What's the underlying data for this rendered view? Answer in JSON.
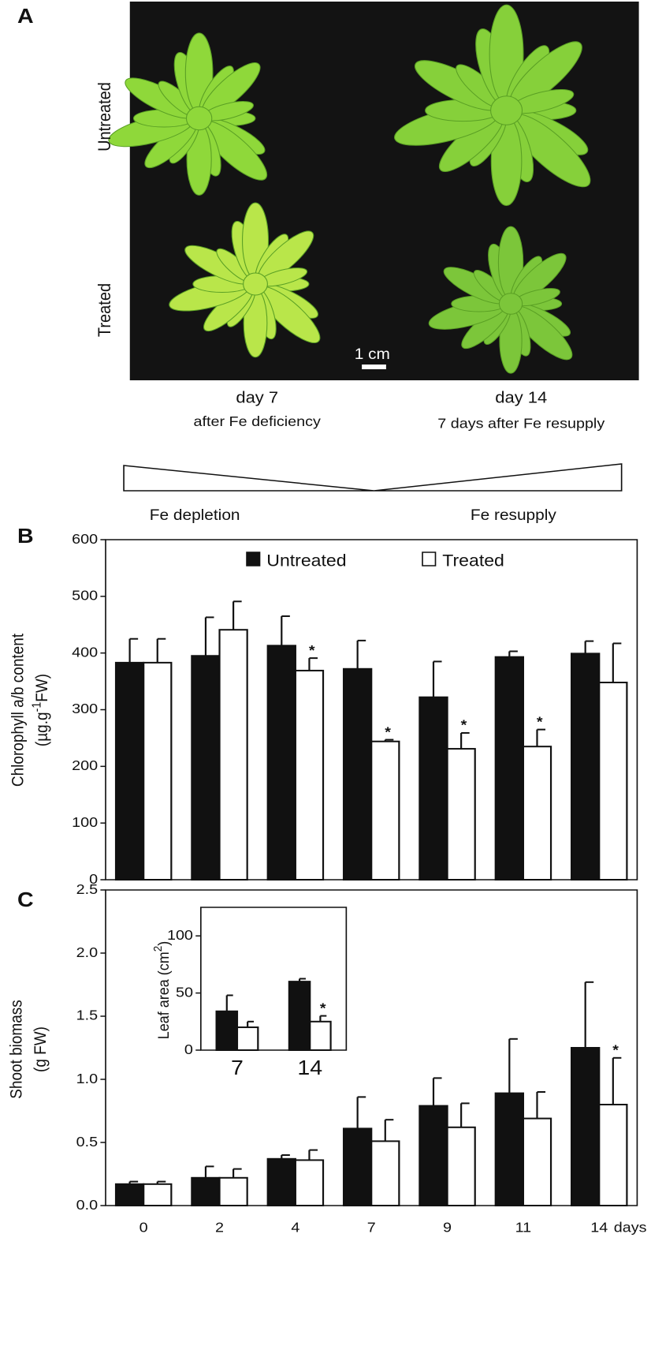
{
  "panel_a": {
    "label": "A",
    "rows": [
      "Untreated",
      "Treated"
    ],
    "scale_bar": "1 cm",
    "columns": [
      {
        "title": "day 7",
        "subtitle": "after Fe deficiency"
      },
      {
        "title": "day 14",
        "subtitle": "7 days after Fe resupply"
      }
    ],
    "phases": [
      "Fe depletion",
      "Fe resupply"
    ]
  },
  "chart_data": [
    {
      "type": "bar",
      "panel_label": "B",
      "ylabel": [
        "Chlorophyll a/b content",
        "(µg.g",
        "-1",
        "FW)"
      ],
      "categories": [
        null,
        null,
        null,
        null,
        null,
        null,
        null
      ],
      "series": [
        {
          "name": "Untreated",
          "color": "#111111",
          "values": [
            383,
            395,
            413,
            372,
            322,
            393,
            399
          ],
          "errors": [
            42,
            68,
            52,
            50,
            63,
            10,
            22
          ],
          "significance": [
            null,
            null,
            null,
            null,
            null,
            null,
            null
          ]
        },
        {
          "name": "Treated",
          "color": "#ffffff",
          "values": [
            383,
            441,
            369,
            244,
            231,
            235,
            348
          ],
          "errors": [
            42,
            50,
            22,
            3,
            28,
            30,
            69
          ],
          "significance": [
            null,
            null,
            "*",
            "*",
            "*",
            "*",
            null
          ]
        }
      ],
      "ylim": [
        0,
        600
      ],
      "yticks": [
        0,
        100,
        200,
        300,
        400,
        500,
        600
      ],
      "legend": "top"
    },
    {
      "type": "bar",
      "panel_label": "C",
      "ylabel": [
        "Shoot biomass",
        "(g FW)"
      ],
      "xlabel": "days",
      "categories": [
        "0",
        "2",
        "4",
        "7",
        "9",
        "11",
        "14"
      ],
      "series": [
        {
          "color": "#111111",
          "values": [
            0.17,
            0.22,
            0.37,
            0.61,
            0.79,
            0.89,
            1.25
          ],
          "errors": [
            0.02,
            0.09,
            0.03,
            0.25,
            0.22,
            0.43,
            0.52
          ],
          "significance": [
            null,
            null,
            null,
            null,
            null,
            null,
            null
          ]
        },
        {
          "color": "#ffffff",
          "values": [
            0.17,
            0.22,
            0.36,
            0.51,
            0.62,
            0.69,
            0.8
          ],
          "errors": [
            0.02,
            0.07,
            0.08,
            0.17,
            0.19,
            0.21,
            0.37
          ],
          "significance": [
            null,
            null,
            null,
            null,
            null,
            null,
            "*"
          ]
        }
      ],
      "ylim": [
        0,
        2.5
      ],
      "yticks": [
        {
          "value": 0,
          "label": "0.0"
        },
        0.5,
        {
          "value": 1,
          "label": "1.0"
        },
        1.5,
        {
          "value": 2,
          "label": "2.0"
        },
        2.5
      ]
    },
    {
      "type": "bar",
      "ylabel": [
        "Leaf area (cm",
        "2",
        ")"
      ],
      "categories": [
        "7",
        "14"
      ],
      "series": [
        {
          "color": "#111111",
          "values": [
            34,
            60
          ],
          "errors": [
            14,
            2.5
          ],
          "significance": [
            null,
            null
          ]
        },
        {
          "color": "#ffffff",
          "values": [
            20,
            25
          ],
          "errors": [
            5,
            5
          ],
          "significance": [
            null,
            "*"
          ]
        }
      ],
      "ylim": [
        0,
        125
      ],
      "yticks": [
        0,
        50,
        100
      ]
    }
  ]
}
